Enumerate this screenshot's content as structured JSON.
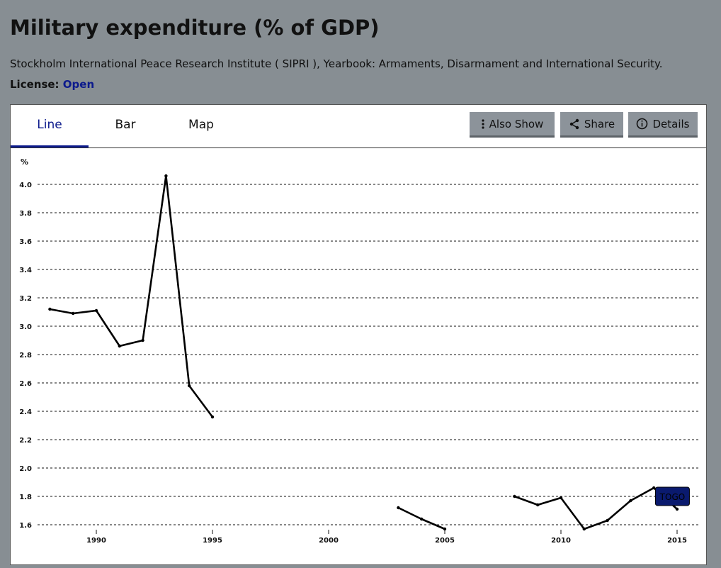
{
  "header": {
    "title": "Military expenditure (% of GDP)",
    "source": "Stockholm International Peace Research Institute ( SIPRI ), Yearbook: Armaments, Disarmament and International Security.",
    "license_label": "License:",
    "license_value": "Open"
  },
  "tabs": [
    {
      "label": "Line",
      "active": true
    },
    {
      "label": "Bar",
      "active": false
    },
    {
      "label": "Map",
      "active": false
    }
  ],
  "toolbar": {
    "also_show": "Also Show",
    "share": "Share",
    "details": "Details"
  },
  "chart_data": {
    "type": "line",
    "title": "",
    "xlabel": "",
    "ylabel": "%",
    "ylim": [
      1.6,
      4.0
    ],
    "yticks": [
      1.6,
      1.8,
      2.0,
      2.2,
      2.4,
      2.6,
      2.8,
      3.0,
      3.2,
      3.4,
      3.6,
      3.8,
      4.0
    ],
    "xticks": [
      1990,
      1995,
      2000,
      2005,
      2010,
      2015
    ],
    "grid": true,
    "series": [
      {
        "name": "TOGO",
        "color": "#000000",
        "x": [
          1988,
          1989,
          1990,
          1991,
          1992,
          1993,
          1994,
          1995,
          1996,
          1997,
          1998,
          1999,
          2000,
          2001,
          2002,
          2003,
          2004,
          2005,
          2006,
          2007,
          2008,
          2009,
          2010,
          2011,
          2012,
          2013,
          2014,
          2015
        ],
        "y": [
          3.12,
          3.09,
          3.11,
          2.86,
          2.9,
          4.06,
          2.58,
          2.36,
          null,
          null,
          null,
          null,
          null,
          null,
          null,
          1.72,
          1.64,
          1.57,
          null,
          null,
          1.8,
          1.74,
          1.79,
          1.57,
          1.63,
          1.77,
          1.86,
          1.71
        ]
      }
    ],
    "annotation": {
      "text": "TOGO",
      "x": 2014.8,
      "y": 1.8,
      "color": "#0a1a6e"
    }
  }
}
